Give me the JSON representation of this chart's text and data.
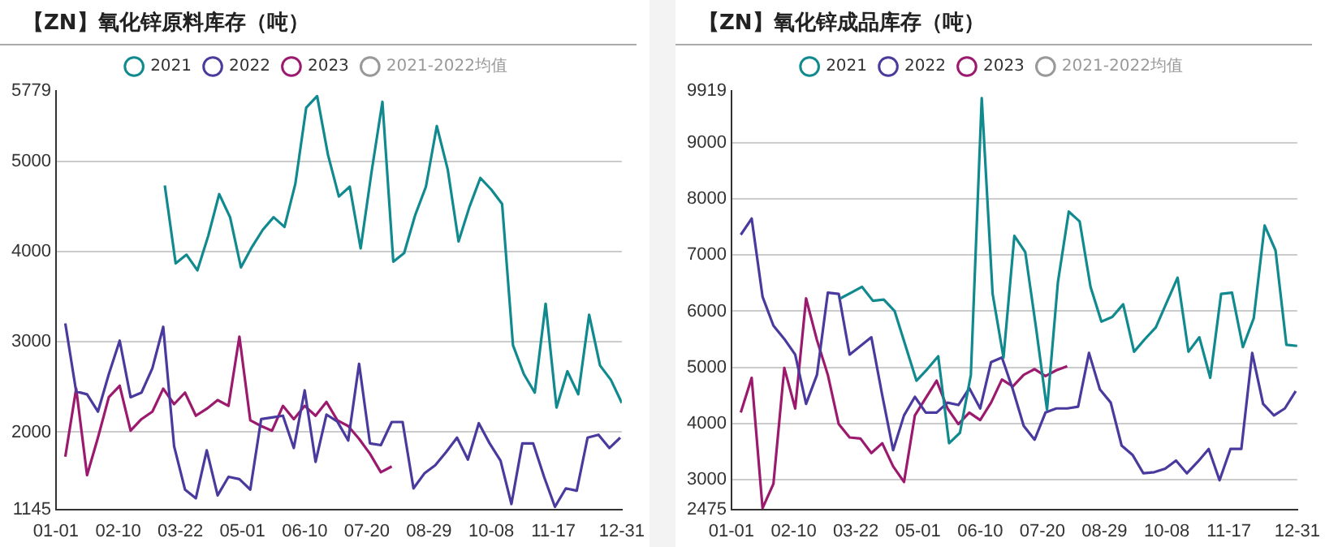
{
  "chart_data": [
    {
      "type": "line",
      "title": "【ZN】氧化锌原料库存（吨）",
      "legend": "top",
      "grid": "y",
      "marker": "none",
      "line_style": "solid",
      "x": [
        "--01-07",
        "--01-14",
        "--01-21",
        "--01-28",
        "--02-04",
        "--02-11",
        "--02-18",
        "--02-25",
        "--03-04",
        "--03-11",
        "--03-18",
        "--03-25",
        "--04-01",
        "--04-08",
        "--04-15",
        "--04-22",
        "--04-29",
        "--05-06",
        "--05-13",
        "--05-20",
        "--05-27",
        "--06-03",
        "--06-10",
        "--06-17",
        "--06-24",
        "--07-01",
        "--07-08",
        "--07-15",
        "--07-22",
        "--07-29",
        "--08-05",
        "--08-12",
        "--08-19",
        "--08-26",
        "--09-02",
        "--09-09",
        "--09-16",
        "--09-23",
        "--09-30",
        "--10-07",
        "--10-14",
        "--10-21",
        "--10-28",
        "--11-04",
        "--11-11",
        "--11-18",
        "--11-25",
        "--12-02",
        "--12-09",
        "--12-16",
        "--12-23",
        "--12-30"
      ],
      "xlim": [
        "--01-01",
        "--12-31"
      ],
      "xticks": [
        {
          "value": "--01-01",
          "label": "01-01"
        },
        {
          "value": "--02-10",
          "label": "02-10"
        },
        {
          "value": "--03-22",
          "label": "03-22"
        },
        {
          "value": "--05-01",
          "label": "05-01"
        },
        {
          "value": "--06-10",
          "label": "06-10"
        },
        {
          "value": "--07-20",
          "label": "07-20"
        },
        {
          "value": "--08-29",
          "label": "08-29"
        },
        {
          "value": "--10-08",
          "label": "10-08"
        },
        {
          "value": "--11-17",
          "label": "11-17"
        },
        {
          "value": "--12-31",
          "label": "12-31"
        }
      ],
      "ylim": [
        1145,
        5779
      ],
      "yticks": [
        1145,
        2000,
        3000,
        4000,
        5000,
        5779
      ],
      "series": [
        {
          "name": "2021",
          "color": "#108a8f",
          "x": [
            "--03-12",
            "--03-19",
            "--03-26",
            "--04-02",
            "--04-09",
            "--04-16",
            "--04-23",
            "--04-30",
            "--05-07",
            "--05-14",
            "--05-21",
            "--05-28",
            "--06-04",
            "--06-11",
            "--06-18",
            "--06-25",
            "--07-02",
            "--07-09",
            "--07-16",
            "--07-23",
            "--07-30",
            "--08-06",
            "--08-13",
            "--08-20",
            "--08-27",
            "--09-03",
            "--09-10",
            "--09-17",
            "--09-24",
            "--10-01",
            "--10-08",
            "--10-15",
            "--10-22",
            "--10-29",
            "--11-05",
            "--11-12",
            "--11-19",
            "--11-26",
            "--12-03",
            "--12-10",
            "--12-17",
            "--12-24",
            "--12-31"
          ],
          "values": [
            4732,
            3869,
            3965,
            3792,
            4176,
            4636,
            4380,
            3824,
            4048,
            4240,
            4380,
            4272,
            4751,
            5594,
            5722,
            5070,
            4610,
            4719,
            4035,
            4879,
            5658,
            3888,
            3984,
            4399,
            4719,
            5390,
            4911,
            4112,
            4495,
            4815,
            4687,
            4527,
            2962,
            2642,
            2438,
            3422,
            2272,
            2674,
            2419,
            3300,
            2738,
            2578,
            2323
          ]
        },
        {
          "name": "2022",
          "color": "#4b3a9e",
          "values": [
            3204,
            2450,
            2419,
            2227,
            2642,
            3013,
            2387,
            2438,
            2706,
            3166,
            1843,
            1364,
            1268,
            1799,
            1300,
            1505,
            1479,
            1364,
            2144,
            2163,
            2182,
            1824,
            2463,
            1671,
            2195,
            2118,
            1907,
            2757,
            1875,
            1856,
            2112,
            2112,
            1377,
            1543,
            1633,
            1779,
            1939,
            1696,
            2099,
            1875,
            1684,
            1204,
            1875,
            1875,
            1505,
            1173,
            1377,
            1351,
            1939,
            1971,
            1824,
            1939
          ]
        },
        {
          "name": "2023",
          "color": "#9c1a6e",
          "x": [
            "--01-07",
            "--01-14",
            "--01-21",
            "--01-28",
            "--02-04",
            "--02-11",
            "--02-18",
            "--02-25",
            "--03-04",
            "--03-11",
            "--03-18",
            "--03-25",
            "--04-01",
            "--04-08",
            "--04-15",
            "--04-22",
            "--04-29",
            "--05-06",
            "--05-13",
            "--05-20",
            "--05-27",
            "--06-03",
            "--06-10",
            "--06-17",
            "--06-24",
            "--07-01",
            "--07-08",
            "--07-15",
            "--07-22",
            "--07-29",
            "--08-05"
          ],
          "values": [
            1728,
            2482,
            1524,
            1939,
            2387,
            2514,
            2016,
            2144,
            2227,
            2482,
            2310,
            2438,
            2182,
            2259,
            2355,
            2291,
            3058,
            2131,
            2067,
            2016,
            2291,
            2144,
            2291,
            2182,
            2335,
            2131,
            2067,
            1926,
            1760,
            1556,
            1620
          ]
        },
        {
          "name": "2021-2022均值",
          "color": "#999999",
          "values": [
            null,
            null,
            null,
            null,
            null,
            null,
            null,
            null,
            null,
            null,
            null,
            null,
            null,
            null,
            null,
            null,
            null,
            null,
            null,
            null,
            null,
            null,
            null,
            null,
            null,
            null,
            null,
            null,
            null,
            null,
            null,
            null,
            null,
            null,
            null,
            null,
            null,
            null,
            null,
            null,
            null,
            null,
            null,
            null,
            null,
            null,
            null,
            null,
            null,
            null,
            null,
            null
          ]
        }
      ]
    },
    {
      "type": "line",
      "title": "【ZN】氧化锌成品库存（吨）",
      "legend": "top",
      "grid": "y",
      "marker": "none",
      "line_style": "solid",
      "x": [
        "--01-07",
        "--01-14",
        "--01-21",
        "--01-28",
        "--02-04",
        "--02-11",
        "--02-18",
        "--02-25",
        "--03-04",
        "--03-11",
        "--03-18",
        "--03-25",
        "--04-01",
        "--04-08",
        "--04-15",
        "--04-22",
        "--04-29",
        "--05-06",
        "--05-13",
        "--05-20",
        "--05-27",
        "--06-03",
        "--06-10",
        "--06-17",
        "--06-24",
        "--07-01",
        "--07-08",
        "--07-15",
        "--07-22",
        "--07-29",
        "--08-05",
        "--08-12",
        "--08-19",
        "--08-26",
        "--09-02",
        "--09-09",
        "--09-16",
        "--09-23",
        "--09-30",
        "--10-07",
        "--10-14",
        "--10-21",
        "--10-28",
        "--11-04",
        "--11-11",
        "--11-18",
        "--11-25",
        "--12-02",
        "--12-09",
        "--12-16",
        "--12-23",
        "--12-30"
      ],
      "xlim": [
        "--01-01",
        "--12-31"
      ],
      "xticks": [
        {
          "value": "--01-01",
          "label": "01-01"
        },
        {
          "value": "--02-10",
          "label": "02-10"
        },
        {
          "value": "--03-22",
          "label": "03-22"
        },
        {
          "value": "--05-01",
          "label": "05-01"
        },
        {
          "value": "--06-10",
          "label": "06-10"
        },
        {
          "value": "--07-20",
          "label": "07-20"
        },
        {
          "value": "--08-29",
          "label": "08-29"
        },
        {
          "value": "--10-08",
          "label": "10-08"
        },
        {
          "value": "--11-17",
          "label": "11-17"
        },
        {
          "value": "--12-31",
          "label": "12-31"
        }
      ],
      "ylim": [
        2475,
        9919
      ],
      "yticks": [
        2475,
        3000,
        4000,
        5000,
        6000,
        7000,
        8000,
        9000,
        9919
      ],
      "series": [
        {
          "name": "2021",
          "color": "#108a8f",
          "x": [
            "--03-12",
            "--03-19",
            "--03-26",
            "--04-02",
            "--04-09",
            "--04-16",
            "--04-23",
            "--04-30",
            "--05-07",
            "--05-14",
            "--05-21",
            "--05-28",
            "--06-04",
            "--06-11",
            "--06-18",
            "--06-25",
            "--07-02",
            "--07-09",
            "--07-16",
            "--07-23",
            "--07-30",
            "--08-06",
            "--08-13",
            "--08-20",
            "--08-27",
            "--09-03",
            "--09-10",
            "--09-17",
            "--09-24",
            "--10-01",
            "--10-08",
            "--10-15",
            "--10-22",
            "--10-29",
            "--11-05",
            "--11-12",
            "--11-19",
            "--11-26",
            "--12-03",
            "--12-10",
            "--12-17",
            "--12-24",
            "--12-31"
          ],
          "values": [
            6227,
            6330,
            6433,
            6185,
            6206,
            6000,
            5382,
            4764,
            4970,
            5197,
            3652,
            3837,
            4867,
            9790,
            6309,
            5176,
            7339,
            7051,
            5691,
            4249,
            6515,
            7772,
            7597,
            6433,
            5815,
            5897,
            6124,
            5279,
            5505,
            5712,
            6155,
            6597,
            5279,
            5536,
            4815,
            6309,
            6330,
            5361,
            5876,
            7524,
            7082,
            5403,
            5382
          ]
        },
        {
          "name": "2022",
          "color": "#4b3a9e",
          "values": [
            7360,
            7648,
            6258,
            5743,
            5506,
            5228,
            4352,
            4867,
            6330,
            6309,
            5228,
            5382,
            5536,
            4506,
            3528,
            4146,
            4476,
            4197,
            4197,
            4373,
            4331,
            4630,
            4270,
            5094,
            5176,
            4609,
            3961,
            3713,
            4197,
            4270,
            4270,
            4300,
            5258,
            4609,
            4373,
            3610,
            3445,
            3116,
            3136,
            3198,
            3342,
            3116,
            3322,
            3549,
            2992,
            3549,
            3549,
            5258,
            4352,
            4146,
            4270,
            4579
          ]
        },
        {
          "name": "2023",
          "color": "#9c1a6e",
          "x": [
            "--01-07",
            "--01-14",
            "--01-21",
            "--01-28",
            "--02-04",
            "--02-11",
            "--02-18",
            "--02-25",
            "--03-04",
            "--03-11",
            "--03-18",
            "--03-25",
            "--04-01",
            "--04-08",
            "--04-15",
            "--04-22",
            "--04-29",
            "--05-06",
            "--05-13",
            "--05-20",
            "--05-27",
            "--06-03",
            "--06-10",
            "--06-17",
            "--06-24",
            "--07-01",
            "--07-08",
            "--07-15",
            "--07-22",
            "--07-29",
            "--08-05"
          ],
          "values": [
            4197,
            4815,
            2497,
            2930,
            4991,
            4270,
            6227,
            5485,
            4867,
            3991,
            3754,
            3734,
            3476,
            3651,
            3240,
            2961,
            4146,
            4455,
            4764,
            4270,
            3991,
            4197,
            4063,
            4373,
            4785,
            4661,
            4867,
            4970,
            4846,
            4949,
            5022
          ]
        },
        {
          "name": "2021-2022均值",
          "color": "#999999",
          "values": [
            null,
            null,
            null,
            null,
            null,
            null,
            null,
            null,
            null,
            null,
            null,
            null,
            null,
            null,
            null,
            null,
            null,
            null,
            null,
            null,
            null,
            null,
            null,
            null,
            null,
            null,
            null,
            null,
            null,
            null,
            null,
            null,
            null,
            null,
            null,
            null,
            null,
            null,
            null,
            null,
            null,
            null,
            null,
            null,
            null,
            null,
            null,
            null,
            null,
            null,
            null,
            null
          ]
        }
      ]
    }
  ]
}
